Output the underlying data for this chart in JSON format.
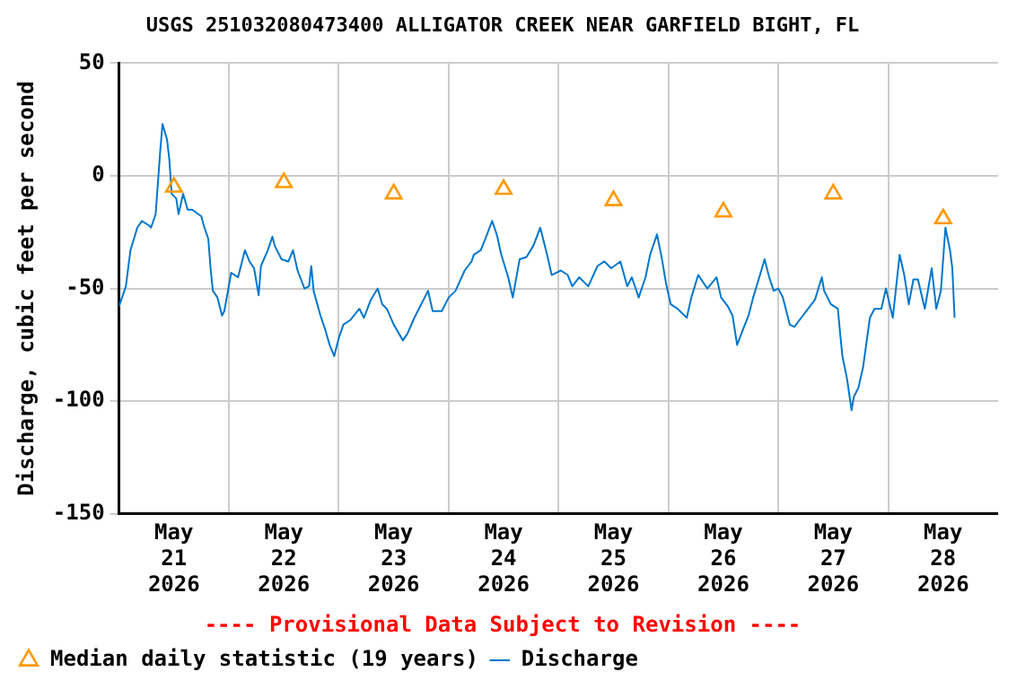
{
  "chart_data": {
    "type": "line",
    "title": "USGS 251032080473400 ALLIGATOR CREEK NEAR GARFIELD BIGHT, FL",
    "ylabel": "Discharge, cubic feet per second",
    "annotations": [
      "---- Provisional Data Subject to Revision ----"
    ],
    "xlim": [
      "2026-05-21T00:00",
      "2026-05-29T00:00"
    ],
    "xticks": [
      {
        "value": "2026-05-21T12:00",
        "label": "May\n21\n2026"
      },
      {
        "value": "2026-05-22T00:00",
        "label": null
      },
      {
        "value": "2026-05-22T12:00",
        "label": "May\n22\n2026"
      },
      {
        "value": "2026-05-23T00:00",
        "label": null
      },
      {
        "value": "2026-05-23T12:00",
        "label": "May\n23\n2026"
      },
      {
        "value": "2026-05-24T00:00",
        "label": null
      },
      {
        "value": "2026-05-24T12:00",
        "label": "May\n24\n2026"
      },
      {
        "value": "2026-05-25T00:00",
        "label": null
      },
      {
        "value": "2026-05-25T12:00",
        "label": "May\n25\n2026"
      },
      {
        "value": "2026-05-26T00:00",
        "label": null
      },
      {
        "value": "2026-05-26T12:00",
        "label": "May\n26\n2026"
      },
      {
        "value": "2026-05-27T00:00",
        "label": null
      },
      {
        "value": "2026-05-27T12:00",
        "label": "May\n27\n2026"
      },
      {
        "value": "2026-05-28T00:00",
        "label": null
      },
      {
        "value": "2026-05-28T12:00",
        "label": "May\n28\n2026"
      }
    ],
    "ylim": [
      -150,
      50
    ],
    "yticks": [
      -150,
      -100,
      -50,
      0,
      50
    ],
    "grid": true,
    "legend": "bottom",
    "series": [
      {
        "name": "Median daily statistic (19 years)",
        "type": "scatter",
        "marker": "triangle",
        "color": "#ff9900",
        "x": [
          "2026-05-21T12:00",
          "2026-05-22T12:00",
          "2026-05-23T12:00",
          "2026-05-24T12:00",
          "2026-05-25T12:00",
          "2026-05-26T12:00",
          "2026-05-27T12:00",
          "2026-05-28T12:00"
        ],
        "values": [
          -5,
          -3,
          -8,
          -6,
          -11,
          -16,
          -8,
          -19
        ]
      },
      {
        "name": "Discharge",
        "type": "line",
        "marker": "none",
        "color": "#0077cc",
        "x": [
          "2026-05-21T00:00",
          "2026-05-21T01:30",
          "2026-05-21T02:30",
          "2026-05-21T04:00",
          "2026-05-21T05:00",
          "2026-05-21T06:30",
          "2026-05-21T07:00",
          "2026-05-21T08:00",
          "2026-05-21T09:00",
          "2026-05-21T09:30",
          "2026-05-21T10:30",
          "2026-05-21T11:00",
          "2026-05-21T11:30",
          "2026-05-21T12:30",
          "2026-05-21T13:00",
          "2026-05-21T14:00",
          "2026-05-21T15:00",
          "2026-05-21T16:00",
          "2026-05-21T18:00",
          "2026-05-21T18:30",
          "2026-05-21T19:30",
          "2026-05-21T20:00",
          "2026-05-21T20:30",
          "2026-05-21T21:30",
          "2026-05-21T22:30",
          "2026-05-21T23:00",
          "2026-05-22T00:30",
          "2026-05-22T02:00",
          "2026-05-22T03:30",
          "2026-05-22T04:30",
          "2026-05-22T05:30",
          "2026-05-22T06:30",
          "2026-05-22T07:00",
          "2026-05-22T08:30",
          "2026-05-22T09:30",
          "2026-05-22T10:00",
          "2026-05-22T11:30",
          "2026-05-22T13:00",
          "2026-05-22T14:00",
          "2026-05-22T15:00",
          "2026-05-22T16:30",
          "2026-05-22T17:30",
          "2026-05-22T18:00",
          "2026-05-22T18:30",
          "2026-05-22T20:00",
          "2026-05-22T21:00",
          "2026-05-22T22:00",
          "2026-05-22T23:00",
          "2026-05-23T00:00",
          "2026-05-23T01:00",
          "2026-05-23T02:30",
          "2026-05-23T04:30",
          "2026-05-23T05:30",
          "2026-05-23T07:00",
          "2026-05-23T08:30",
          "2026-05-23T09:30",
          "2026-05-23T10:30",
          "2026-05-23T12:00",
          "2026-05-23T14:00",
          "2026-05-23T15:00",
          "2026-05-23T16:30",
          "2026-05-23T18:00",
          "2026-05-23T19:30",
          "2026-05-23T20:30",
          "2026-05-23T22:30",
          "2026-05-24T00:00",
          "2026-05-24T01:30",
          "2026-05-24T03:30",
          "2026-05-24T05:00",
          "2026-05-24T05:30",
          "2026-05-24T07:00",
          "2026-05-24T08:00",
          "2026-05-24T09:30",
          "2026-05-24T10:30",
          "2026-05-24T11:30",
          "2026-05-24T13:00",
          "2026-05-24T14:00",
          "2026-05-24T15:30",
          "2026-05-24T17:00",
          "2026-05-24T18:30",
          "2026-05-24T20:00",
          "2026-05-24T21:30",
          "2026-05-24T22:30",
          "2026-05-25T00:30",
          "2026-05-25T02:00",
          "2026-05-25T03:00",
          "2026-05-25T04:30",
          "2026-05-25T06:30",
          "2026-05-25T08:30",
          "2026-05-25T10:00",
          "2026-05-25T11:30",
          "2026-05-25T13:30",
          "2026-05-25T15:00",
          "2026-05-25T16:00",
          "2026-05-25T17:30",
          "2026-05-25T19:00",
          "2026-05-25T20:00",
          "2026-05-25T21:30",
          "2026-05-25T22:30",
          "2026-05-25T23:30",
          "2026-05-26T00:30",
          "2026-05-26T02:00",
          "2026-05-26T04:00",
          "2026-05-26T05:00",
          "2026-05-26T06:30",
          "2026-05-26T08:30",
          "2026-05-26T10:30",
          "2026-05-26T11:30",
          "2026-05-26T13:00",
          "2026-05-26T14:00",
          "2026-05-26T15:00",
          "2026-05-26T16:30",
          "2026-05-26T17:30",
          "2026-05-26T18:30",
          "2026-05-26T20:00",
          "2026-05-26T21:00",
          "2026-05-26T22:00",
          "2026-05-26T23:00",
          "2026-05-27T00:00",
          "2026-05-27T01:00",
          "2026-05-27T02:30",
          "2026-05-27T03:30",
          "2026-05-27T05:00",
          "2026-05-27T06:30",
          "2026-05-27T08:00",
          "2026-05-27T09:30",
          "2026-05-27T10:00",
          "2026-05-27T11:30",
          "2026-05-27T13:00",
          "2026-05-27T13:30",
          "2026-05-27T14:00",
          "2026-05-27T15:00",
          "2026-05-27T16:00",
          "2026-05-27T16:30",
          "2026-05-27T17:30",
          "2026-05-27T18:30",
          "2026-05-27T20:00",
          "2026-05-27T21:00",
          "2026-05-27T22:30",
          "2026-05-27T23:30",
          "2026-05-28T01:00",
          "2026-05-28T02:30",
          "2026-05-28T03:30",
          "2026-05-28T04:30",
          "2026-05-28T05:30",
          "2026-05-28T06:30",
          "2026-05-28T08:00",
          "2026-05-28T09:30",
          "2026-05-28T10:30",
          "2026-05-28T11:30",
          "2026-05-28T12:30",
          "2026-05-28T13:30",
          "2026-05-28T14:00",
          "2026-05-28T14:30"
        ],
        "values": [
          -58,
          -49,
          -33,
          -23,
          -20,
          -22,
          -23,
          -17,
          11,
          23,
          16,
          7,
          -8,
          -10,
          -17,
          -8,
          -15,
          -15,
          -18,
          -22,
          -28,
          -41,
          -51,
          -54,
          -62,
          -60,
          -43,
          -45,
          -33,
          -38,
          -41,
          -53,
          -40,
          -33,
          -27,
          -31,
          -37,
          -38,
          -33,
          -42,
          -50,
          -49,
          -40,
          -51,
          -62,
          -68,
          -75,
          -80,
          -72,
          -66,
          -64,
          -59,
          -63,
          -55,
          -50,
          -57,
          -59,
          -66,
          -73,
          -70,
          -63,
          -57,
          -51,
          -60,
          -60,
          -54,
          -51,
          -42,
          -38,
          -35,
          -33,
          -28,
          -20,
          -26,
          -35,
          -45,
          -54,
          -37,
          -36,
          -31,
          -23,
          -35,
          -44,
          -42,
          -44,
          -49,
          -45,
          -49,
          -40,
          -38,
          -41,
          -38,
          -49,
          -45,
          -54,
          -45,
          -35,
          -26,
          -36,
          -48,
          -57,
          -59,
          -63,
          -54,
          -44,
          -50,
          -45,
          -54,
          -58,
          -62,
          -75,
          -67,
          -62,
          -54,
          -44,
          -37,
          -45,
          -51,
          -50,
          -54,
          -66,
          -67,
          -63,
          -59,
          -55,
          -45,
          -51,
          -57,
          -59,
          -70,
          -80,
          -90,
          -104,
          -98,
          -94,
          -85,
          -63,
          -59,
          -59,
          -50,
          -63,
          -35,
          -44,
          -57,
          -46,
          -46,
          -59,
          -41,
          -59,
          -51,
          -23,
          -33,
          -41,
          -63
        ]
      }
    ]
  }
}
